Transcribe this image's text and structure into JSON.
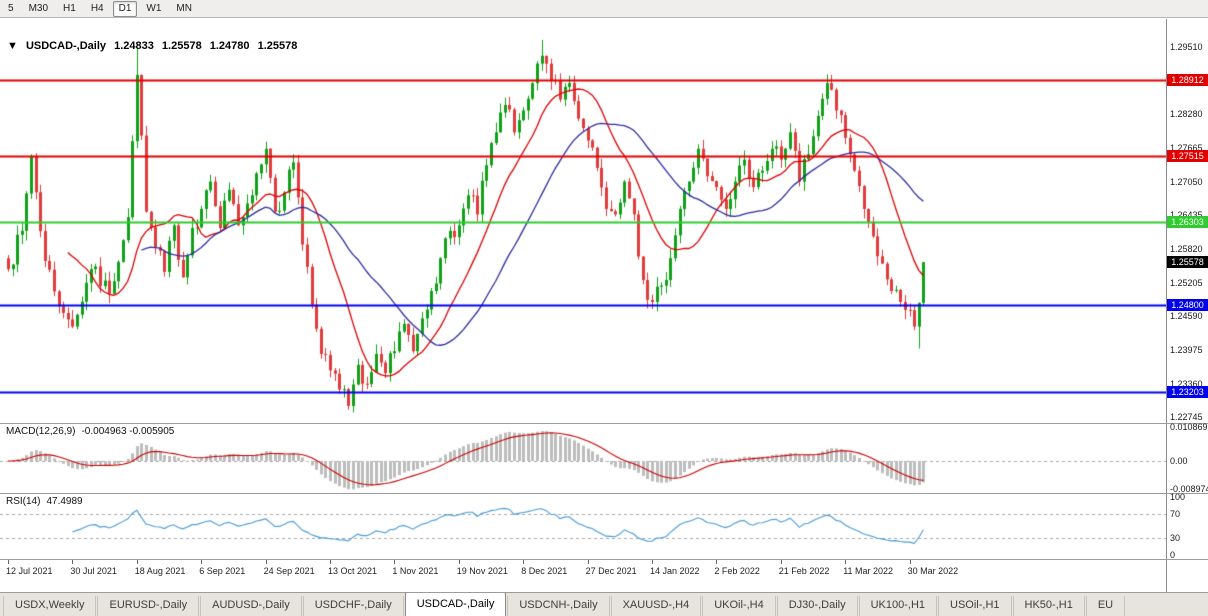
{
  "toolbar": {
    "timeframes": [
      "5",
      "M30",
      "H1",
      "H4",
      "D1",
      "W1",
      "MN"
    ],
    "active": "D1"
  },
  "chart_header": {
    "collapse_icon": "▼",
    "symbol": "USDCAD-,Daily",
    "open": "1.24833",
    "high": "1.25578",
    "low": "1.24780",
    "close": "1.25578"
  },
  "price_axis": {
    "ticks": [
      "1.29510",
      "1.28280",
      "1.27665",
      "1.27050",
      "1.26435",
      "1.25820",
      "1.25205",
      "1.24590",
      "1.23975",
      "1.23360",
      "1.22745"
    ]
  },
  "levels": [
    {
      "name": "resistance-upper",
      "value": 1.28912,
      "label": "1.28912",
      "color": "#e00000",
      "width": 2
    },
    {
      "name": "resistance-lower",
      "value": 1.27515,
      "label": "1.27515",
      "color": "#e00000",
      "width": 2
    },
    {
      "name": "mid-level-green",
      "value": 1.26303,
      "label": "1.26303",
      "color": "#2ecc2e",
      "width": 2
    },
    {
      "name": "support-upper",
      "value": 1.248,
      "label": "1.24800",
      "color": "#0000ee",
      "width": 2
    },
    {
      "name": "support-lower",
      "value": 1.23203,
      "label": "1.23203",
      "color": "#0000ee",
      "width": 2
    }
  ],
  "last_price": {
    "value": 1.25578,
    "label": "1.25578",
    "bg": "#000000"
  },
  "macd_panel": {
    "label": "MACD(12,26,9)",
    "values_text": "-0.004963 -0.005905",
    "axis_max": 0.010869,
    "axis_min": -0.008974,
    "axis_labels": [
      "0.010869",
      "0.00",
      "-0.008974"
    ]
  },
  "rsi_panel": {
    "label": "RSI(14)",
    "value_text": "47.4989",
    "axis_labels": [
      "100",
      "70",
      "30",
      "0"
    ],
    "upper": 70,
    "lower": 30
  },
  "date_axis": {
    "labels": [
      "12 Jul 2021",
      "30 Jul 2021",
      "18 Aug 2021",
      "6 Sep 2021",
      "24 Sep 2021",
      "13 Oct 2021",
      "1 Nov 2021",
      "19 Nov 2021",
      "8 Dec 2021",
      "27 Dec 2021",
      "14 Jan 2022",
      "2 Feb 2022",
      "21 Feb 2022",
      "11 Mar 2022",
      "30 Mar 2022"
    ],
    "candles_per_label": 14
  },
  "tabs": {
    "items": [
      "USDX,Weekly",
      "EURUSD-,Daily",
      "AUDUSD-,Daily",
      "USDCHF-,Daily",
      "USDCAD-,Daily",
      "USDCNH-,Daily",
      "XAUUSD-,H4",
      "UKOil-,H4",
      "DJ30-,Daily",
      "UK100-,H1",
      "USOil-,H1",
      "HK50-,H1",
      "EU"
    ],
    "active_index": 4
  },
  "chart_data": {
    "type": "candlestick",
    "symbol": "USDCAD",
    "timeframe": "Daily",
    "price_axis_top": 1.2951,
    "price_axis_step": 0.00615,
    "visible_price_range": [
      1.22745,
      1.2951
    ],
    "candle_count": 200,
    "last_candle_ohlc": {
      "open": 1.24833,
      "high": 1.25578,
      "low": 1.2478,
      "close": 1.25578
    },
    "close_anchors": [
      [
        0,
        1.2545
      ],
      [
        3,
        1.2615
      ],
      [
        5,
        1.275
      ],
      [
        8,
        1.256
      ],
      [
        12,
        1.2465
      ],
      [
        14,
        1.244
      ],
      [
        18,
        1.2545
      ],
      [
        22,
        1.25
      ],
      [
        26,
        1.264
      ],
      [
        28,
        1.29
      ],
      [
        30,
        1.265
      ],
      [
        32,
        1.2585
      ],
      [
        34,
        1.254
      ],
      [
        36,
        1.2625
      ],
      [
        38,
        1.253
      ],
      [
        40,
        1.262
      ],
      [
        42,
        1.2655
      ],
      [
        44,
        1.2705
      ],
      [
        46,
        1.262
      ],
      [
        48,
        1.269
      ],
      [
        50,
        1.2625
      ],
      [
        52,
        1.2665
      ],
      [
        54,
        1.272
      ],
      [
        56,
        1.2765
      ],
      [
        58,
        1.265
      ],
      [
        60,
        1.2685
      ],
      [
        62,
        1.274
      ],
      [
        64,
        1.259
      ],
      [
        66,
        1.248
      ],
      [
        68,
        1.239
      ],
      [
        70,
        1.236
      ],
      [
        72,
        1.2325
      ],
      [
        74,
        1.2295
      ],
      [
        76,
        1.237
      ],
      [
        78,
        1.2335
      ],
      [
        80,
        1.239
      ],
      [
        82,
        1.2355
      ],
      [
        84,
        1.2395
      ],
      [
        86,
        1.2445
      ],
      [
        88,
        1.2395
      ],
      [
        90,
        1.2455
      ],
      [
        92,
        1.2505
      ],
      [
        94,
        1.2565
      ],
      [
        96,
        1.2615
      ],
      [
        98,
        1.2625
      ],
      [
        100,
        1.268
      ],
      [
        102,
        1.2645
      ],
      [
        104,
        1.2735
      ],
      [
        106,
        1.2795
      ],
      [
        108,
        1.2845
      ],
      [
        110,
        1.2795
      ],
      [
        112,
        1.2835
      ],
      [
        114,
        1.2885
      ],
      [
        116,
        1.2935
      ],
      [
        118,
        1.289
      ],
      [
        120,
        1.2855
      ],
      [
        122,
        1.2885
      ],
      [
        124,
        1.282
      ],
      [
        126,
        1.278
      ],
      [
        128,
        1.273
      ],
      [
        130,
        1.2655
      ],
      [
        132,
        1.2645
      ],
      [
        134,
        1.2705
      ],
      [
        136,
        1.2645
      ],
      [
        138,
        1.2525
      ],
      [
        140,
        1.2485
      ],
      [
        142,
        1.2515
      ],
      [
        144,
        1.2565
      ],
      [
        146,
        1.2655
      ],
      [
        148,
        1.2705
      ],
      [
        150,
        1.2765
      ],
      [
        152,
        1.2715
      ],
      [
        154,
        1.2695
      ],
      [
        156,
        1.2655
      ],
      [
        158,
        1.2705
      ],
      [
        160,
        1.2745
      ],
      [
        162,
        1.2695
      ],
      [
        164,
        1.2725
      ],
      [
        166,
        1.2765
      ],
      [
        168,
        1.2745
      ],
      [
        170,
        1.2795
      ],
      [
        172,
        1.2705
      ],
      [
        174,
        1.2755
      ],
      [
        176,
        1.2825
      ],
      [
        178,
        1.2885
      ],
      [
        180,
        1.2835
      ],
      [
        182,
        1.2785
      ],
      [
        184,
        1.2725
      ],
      [
        186,
        1.2655
      ],
      [
        188,
        1.2605
      ],
      [
        190,
        1.2555
      ],
      [
        192,
        1.2505
      ],
      [
        194,
        1.2485
      ],
      [
        196,
        1.247
      ],
      [
        197,
        1.244
      ],
      [
        198,
        1.2483
      ],
      [
        199,
        1.25578
      ]
    ],
    "wick_overrides": {
      "28": {
        "high": 1.2949
      },
      "74": {
        "low": 1.2288
      },
      "116": {
        "high": 1.2964
      },
      "178": {
        "high": 1.2901
      },
      "198": {
        "low": 1.24
      },
      "199": {
        "open": 1.24833,
        "high": 1.25578,
        "low": 1.2478,
        "close": 1.25578
      }
    },
    "noise_amplitude": 0.0034,
    "wick_extra_max": 0.0018,
    "seed": 7,
    "indicators": {
      "macd": [
        12,
        26,
        9
      ],
      "rsi_period": 14,
      "ma_fast_period": 14,
      "ma_slow_period": 30
    },
    "colors": {
      "up": "#10a018",
      "down": "#e13b3b",
      "ma_fast": "#dd0000",
      "ma_slow": "#2d2da0",
      "macd_hist": "#bdbdbd",
      "macd_signal": "#cc0000",
      "rsi_line": "#4b9bd7",
      "dashed_guides": "#a8a8a8"
    }
  }
}
